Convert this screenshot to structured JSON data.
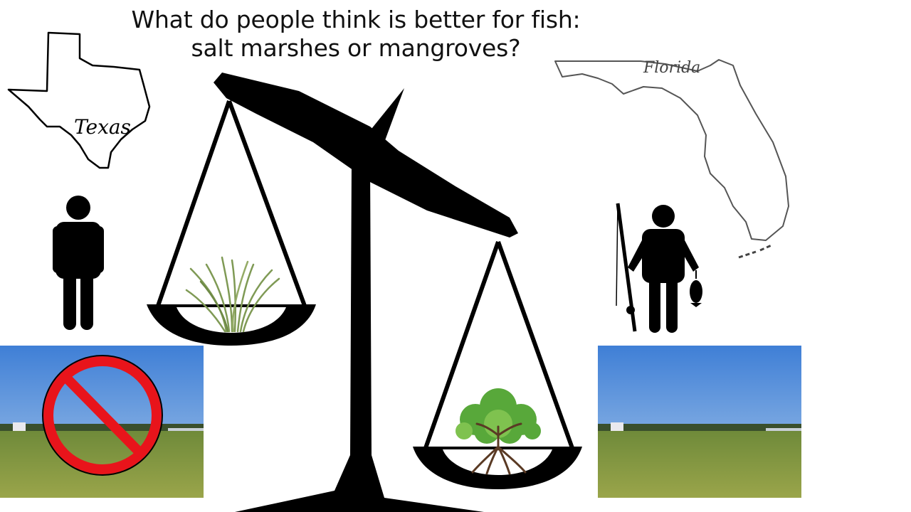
{
  "slide": {
    "title_line1": "What do people think is better for fish:",
    "title_line2": "salt marshes or mangroves?"
  },
  "states": {
    "left": "Texas",
    "right": "Florida"
  },
  "colors": {
    "scale": "#000000",
    "no_sign_red": "#e8141b",
    "sky": "#4a8fdc",
    "grass": "#8b9a3a",
    "marsh_grass": "#7f9a55",
    "mangrove_leaves": "#58a83a",
    "mangrove_roots": "#5a3a24"
  },
  "icons": [
    "texas-outline-icon",
    "florida-outline-icon",
    "person-icon",
    "fisher-person-icon",
    "balance-scale-icon",
    "marsh-grass-icon",
    "mangrove-tree-icon",
    "no-symbol-icon"
  ]
}
